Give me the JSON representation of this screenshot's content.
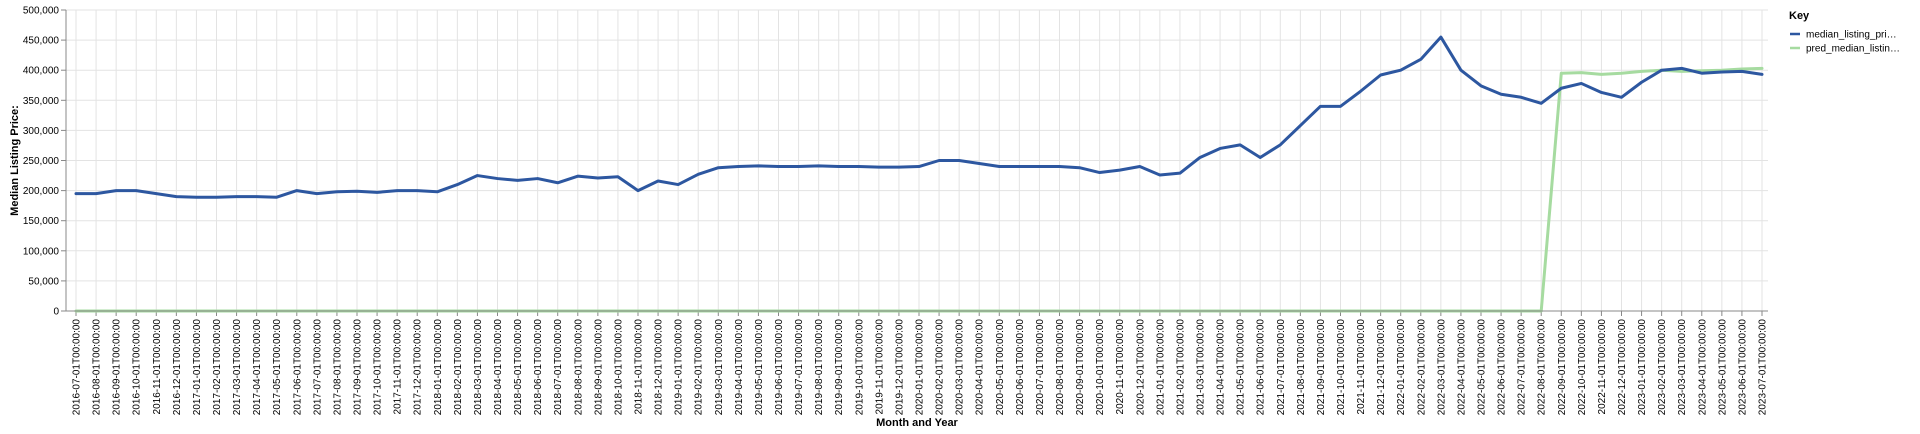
{
  "chart_data": {
    "type": "line",
    "xlabel": "Month and Year",
    "ylabel": "Median Listing Price:",
    "ylim": [
      0,
      500000
    ],
    "yticks": [
      "0",
      "50,000",
      "100,000",
      "150,000",
      "200,000",
      "250,000",
      "300,000",
      "350,000",
      "400,000",
      "450,000",
      "500,000"
    ],
    "grid": true,
    "legend": {
      "title": "Key",
      "position": "right",
      "entries": [
        "median_listing_pri…",
        "pred_median_listin…"
      ]
    },
    "colors": {
      "series_0": "#2d57a0",
      "series_1": "#a6dba0",
      "grid": "#e3e3e3",
      "axis": "#888888"
    },
    "x": [
      "2016-07-01T00:00:00",
      "2016-08-01T00:00:00",
      "2016-09-01T00:00:00",
      "2016-10-01T00:00:00",
      "2016-11-01T00:00:00",
      "2016-12-01T00:00:00",
      "2017-01-01T00:00:00",
      "2017-02-01T00:00:00",
      "2017-03-01T00:00:00",
      "2017-04-01T00:00:00",
      "2017-05-01T00:00:00",
      "2017-06-01T00:00:00",
      "2017-07-01T00:00:00",
      "2017-08-01T00:00:00",
      "2017-09-01T00:00:00",
      "2017-10-01T00:00:00",
      "2017-11-01T00:00:00",
      "2017-12-01T00:00:00",
      "2018-01-01T00:00:00",
      "2018-02-01T00:00:00",
      "2018-03-01T00:00:00",
      "2018-04-01T00:00:00",
      "2018-05-01T00:00:00",
      "2018-06-01T00:00:00",
      "2018-07-01T00:00:00",
      "2018-08-01T00:00:00",
      "2018-09-01T00:00:00",
      "2018-10-01T00:00:00",
      "2018-11-01T00:00:00",
      "2018-12-01T00:00:00",
      "2019-01-01T00:00:00",
      "2019-02-01T00:00:00",
      "2019-03-01T00:00:00",
      "2019-04-01T00:00:00",
      "2019-05-01T00:00:00",
      "2019-06-01T00:00:00",
      "2019-07-01T00:00:00",
      "2019-08-01T00:00:00",
      "2019-09-01T00:00:00",
      "2019-10-01T00:00:00",
      "2019-11-01T00:00:00",
      "2019-12-01T00:00:00",
      "2020-01-01T00:00:00",
      "2020-02-01T00:00:00",
      "2020-03-01T00:00:00",
      "2020-04-01T00:00:00",
      "2020-05-01T00:00:00",
      "2020-06-01T00:00:00",
      "2020-07-01T00:00:00",
      "2020-08-01T00:00:00",
      "2020-09-01T00:00:00",
      "2020-10-01T00:00:00",
      "2020-11-01T00:00:00",
      "2020-12-01T00:00:00",
      "2021-01-01T00:00:00",
      "2021-02-01T00:00:00",
      "2021-03-01T00:00:00",
      "2021-04-01T00:00:00",
      "2021-05-01T00:00:00",
      "2021-06-01T00:00:00",
      "2021-07-01T00:00:00",
      "2021-08-01T00:00:00",
      "2021-09-01T00:00:00",
      "2021-10-01T00:00:00",
      "2021-11-01T00:00:00",
      "2021-12-01T00:00:00",
      "2022-01-01T00:00:00",
      "2022-02-01T00:00:00",
      "2022-03-01T00:00:00",
      "2022-04-01T00:00:00",
      "2022-05-01T00:00:00",
      "2022-06-01T00:00:00",
      "2022-07-01T00:00:00",
      "2022-08-01T00:00:00",
      "2022-09-01T00:00:00",
      "2022-10-01T00:00:00",
      "2022-11-01T00:00:00",
      "2022-12-01T00:00:00",
      "2023-01-01T00:00:00",
      "2023-02-01T00:00:00",
      "2023-03-01T00:00:00",
      "2023-04-01T00:00:00",
      "2023-05-01T00:00:00",
      "2023-06-01T00:00:00",
      "2023-07-01T00:00:00"
    ],
    "series": [
      {
        "name": "median_listing_pri…",
        "values": [
          195000,
          195000,
          200000,
          200000,
          195000,
          190000,
          189000,
          189000,
          190000,
          190000,
          189000,
          200000,
          195000,
          198000,
          199000,
          197000,
          200000,
          200000,
          198000,
          210000,
          225000,
          220000,
          217000,
          220000,
          213000,
          224000,
          221000,
          223000,
          200000,
          216000,
          210000,
          227000,
          238000,
          240000,
          241000,
          240000,
          240000,
          241000,
          240000,
          240000,
          239000,
          239000,
          240000,
          250000,
          250000,
          245000,
          240000,
          240000,
          240000,
          240000,
          238000,
          230000,
          234000,
          240000,
          226000,
          229000,
          255000,
          270000,
          276000,
          255000,
          276000,
          308000,
          340000,
          340000,
          365000,
          392000,
          400000,
          418000,
          455000,
          400000,
          374000,
          360000,
          355000,
          345000,
          370000,
          378000,
          363000,
          355000,
          380000,
          400000,
          403000,
          395000,
          397000,
          398000,
          393000
        ]
      },
      {
        "name": "pred_median_listin…",
        "values": [
          0,
          0,
          0,
          0,
          0,
          0,
          0,
          0,
          0,
          0,
          0,
          0,
          0,
          0,
          0,
          0,
          0,
          0,
          0,
          0,
          0,
          0,
          0,
          0,
          0,
          0,
          0,
          0,
          0,
          0,
          0,
          0,
          0,
          0,
          0,
          0,
          0,
          0,
          0,
          0,
          0,
          0,
          0,
          0,
          0,
          0,
          0,
          0,
          0,
          0,
          0,
          0,
          0,
          0,
          0,
          0,
          0,
          0,
          0,
          0,
          0,
          0,
          0,
          0,
          0,
          0,
          0,
          0,
          0,
          0,
          0,
          0,
          0,
          0,
          395000,
          396000,
          393000,
          395000,
          398000,
          400000,
          398000,
          399000,
          400000,
          402000,
          403000
        ]
      }
    ]
  }
}
